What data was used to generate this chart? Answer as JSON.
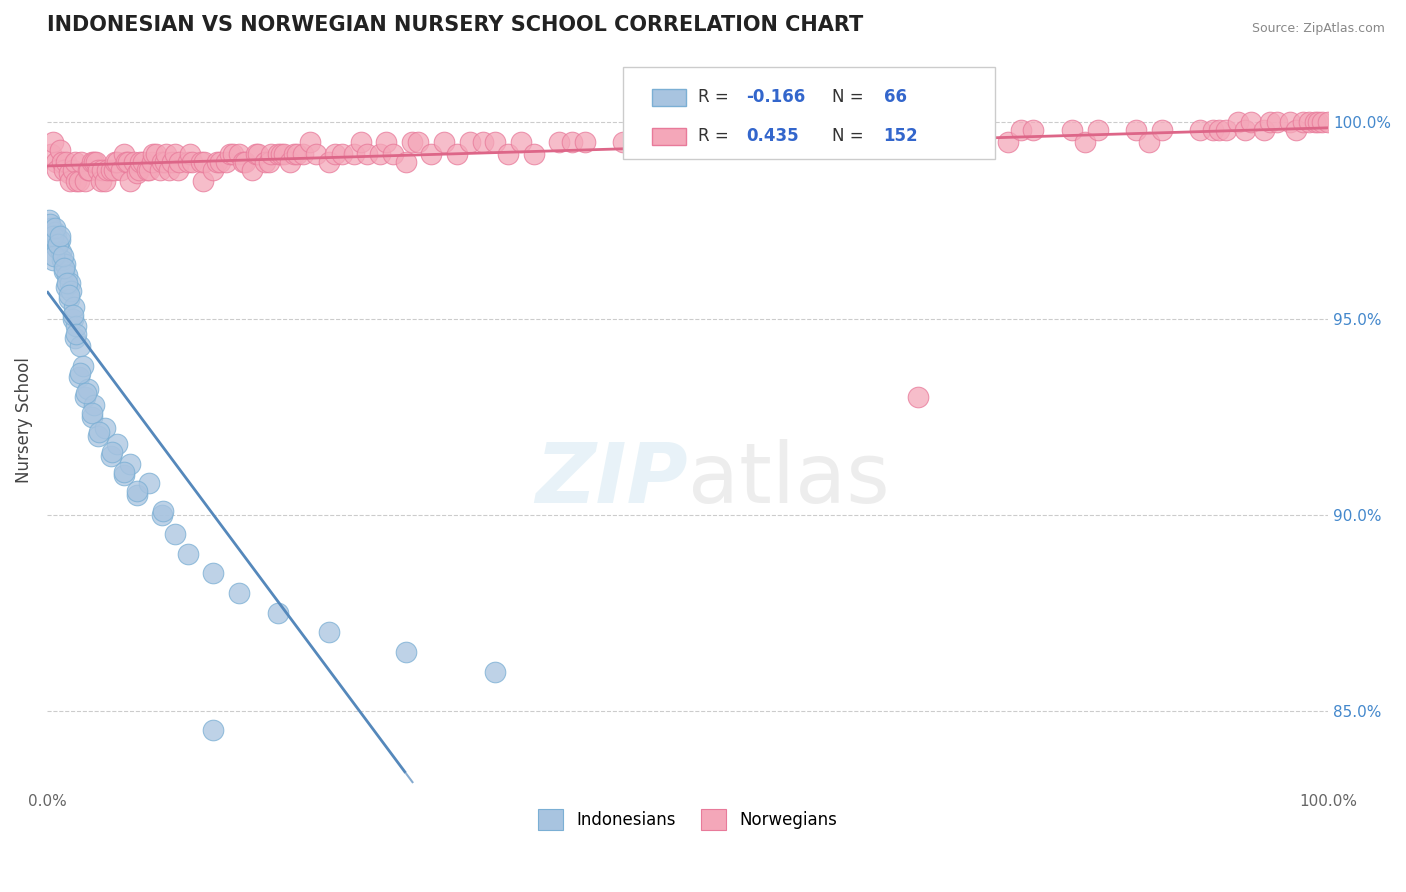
{
  "title": "INDONESIAN VS NORWEGIAN NURSERY SCHOOL CORRELATION CHART",
  "source": "Source: ZipAtlas.com",
  "ylabel": "Nursery School",
  "indonesian_color": "#a8c4e0",
  "norwegian_color": "#f4a7b9",
  "indonesian_edge": "#7bafd4",
  "norwegian_edge": "#e87a9a",
  "trend_blue": "#5588bb",
  "trend_pink": "#dd6688",
  "background": "#ffffff",
  "indonesian_x": [
    0.2,
    0.3,
    0.4,
    0.5,
    0.6,
    0.7,
    0.8,
    0.9,
    1.0,
    1.1,
    1.2,
    1.3,
    1.4,
    1.5,
    1.6,
    1.7,
    1.8,
    1.9,
    2.0,
    2.1,
    2.2,
    2.3,
    2.5,
    2.6,
    2.8,
    3.0,
    3.2,
    3.5,
    3.7,
    4.0,
    4.5,
    5.0,
    5.5,
    6.0,
    6.5,
    7.0,
    8.0,
    9.0,
    10.0,
    11.0,
    13.0,
    15.0,
    18.0,
    22.0,
    28.0,
    35.0,
    0.25,
    0.45,
    0.55,
    0.65,
    0.85,
    1.05,
    1.25,
    1.35,
    1.55,
    1.75,
    2.05,
    2.25,
    2.55,
    3.05,
    3.55,
    4.05,
    5.05,
    6.05,
    7.05,
    9.05
  ],
  "indonesian_y": [
    97.5,
    97.3,
    97.0,
    96.5,
    97.2,
    97.1,
    96.8,
    96.9,
    97.0,
    96.7,
    96.5,
    96.2,
    96.4,
    95.8,
    96.1,
    95.5,
    95.9,
    95.7,
    95.0,
    95.3,
    94.5,
    94.8,
    93.5,
    94.3,
    93.8,
    93.0,
    93.2,
    92.5,
    92.8,
    92.0,
    92.2,
    91.5,
    91.8,
    91.0,
    91.3,
    90.5,
    90.8,
    90.0,
    89.5,
    89.0,
    88.5,
    88.0,
    87.5,
    87.0,
    86.5,
    86.0,
    97.4,
    97.1,
    96.6,
    97.3,
    96.9,
    97.1,
    96.6,
    96.3,
    95.9,
    95.6,
    95.1,
    94.6,
    93.6,
    93.1,
    92.6,
    92.1,
    91.6,
    91.1,
    90.6,
    90.1
  ],
  "indonesian_outlier_x": [
    13.0
  ],
  "indonesian_outlier_y": [
    84.5
  ],
  "norwegian_x": [
    0.3,
    0.5,
    0.7,
    0.8,
    1.0,
    1.2,
    1.3,
    1.5,
    1.7,
    1.8,
    2.0,
    2.2,
    2.3,
    2.5,
    2.7,
    3.0,
    3.2,
    3.3,
    3.5,
    3.7,
    3.8,
    4.0,
    4.2,
    4.3,
    4.5,
    4.7,
    5.0,
    5.2,
    5.3,
    5.5,
    5.8,
    6.0,
    6.2,
    6.3,
    6.5,
    6.8,
    7.0,
    7.2,
    7.3,
    7.5,
    7.8,
    8.0,
    8.2,
    8.3,
    8.5,
    8.8,
    9.0,
    9.2,
    9.3,
    9.5,
    9.8,
    10.0,
    10.2,
    10.3,
    11.0,
    11.2,
    11.3,
    12.0,
    12.2,
    12.3,
    13.0,
    13.3,
    13.5,
    14.0,
    14.3,
    14.5,
    15.0,
    15.3,
    15.5,
    16.0,
    16.3,
    16.5,
    17.0,
    17.3,
    17.5,
    18.0,
    18.3,
    18.5,
    19.0,
    19.3,
    19.5,
    20.0,
    20.5,
    21.0,
    22.0,
    22.5,
    23.0,
    24.0,
    24.5,
    25.0,
    26.0,
    26.5,
    27.0,
    28.0,
    28.5,
    29.0,
    30.0,
    31.0,
    32.0,
    33.0,
    34.0,
    35.0,
    36.0,
    37.0,
    38.0,
    40.0,
    41.0,
    42.0,
    45.0,
    46.0,
    47.0,
    50.0,
    51.0,
    52.0,
    55.0,
    56.0,
    57.0,
    60.0,
    61.0,
    62.0,
    65.0,
    66.0,
    67.0,
    70.0,
    71.0,
    72.0,
    75.0,
    76.0,
    77.0,
    80.0,
    81.0,
    82.0,
    85.0,
    86.0,
    87.0,
    90.0,
    91.0,
    91.5,
    92.0,
    93.0,
    93.5,
    94.0,
    95.0,
    95.5,
    96.0,
    97.0,
    97.5,
    98.0,
    98.5,
    99.0,
    99.2,
    99.5,
    100.0
  ],
  "norwegian_y": [
    99.2,
    99.5,
    99.0,
    98.8,
    99.3,
    99.0,
    98.8,
    99.0,
    98.7,
    98.5,
    98.8,
    99.0,
    98.5,
    98.5,
    99.0,
    98.5,
    98.8,
    98.8,
    99.0,
    99.0,
    99.0,
    98.8,
    98.5,
    98.8,
    98.5,
    98.8,
    98.8,
    98.8,
    99.0,
    99.0,
    98.8,
    99.2,
    99.0,
    99.0,
    98.5,
    99.0,
    98.7,
    98.8,
    99.0,
    99.0,
    98.8,
    98.8,
    99.0,
    99.2,
    99.2,
    98.8,
    99.0,
    99.0,
    99.2,
    98.8,
    99.0,
    99.2,
    98.8,
    99.0,
    99.0,
    99.2,
    99.0,
    99.0,
    98.5,
    99.0,
    98.8,
    99.0,
    99.0,
    99.0,
    99.2,
    99.2,
    99.2,
    99.0,
    99.0,
    98.8,
    99.2,
    99.2,
    99.0,
    99.0,
    99.2,
    99.2,
    99.2,
    99.2,
    99.0,
    99.2,
    99.2,
    99.2,
    99.5,
    99.2,
    99.0,
    99.2,
    99.2,
    99.2,
    99.5,
    99.2,
    99.2,
    99.5,
    99.2,
    99.0,
    99.5,
    99.5,
    99.2,
    99.5,
    99.2,
    99.5,
    99.5,
    99.5,
    99.2,
    99.5,
    99.2,
    99.5,
    99.5,
    99.5,
    99.5,
    99.5,
    99.5,
    99.5,
    99.5,
    99.5,
    99.5,
    99.5,
    99.5,
    99.8,
    99.5,
    99.5,
    99.5,
    99.8,
    99.8,
    99.8,
    99.5,
    99.8,
    99.5,
    99.8,
    99.8,
    99.8,
    99.5,
    99.8,
    99.8,
    99.5,
    99.8,
    99.8,
    99.8,
    99.8,
    99.8,
    100.0,
    99.8,
    100.0,
    99.8,
    100.0,
    100.0,
    100.0,
    99.8,
    100.0,
    100.0,
    100.0,
    100.0,
    100.0,
    100.0
  ],
  "norwegian_outlier_x": [
    68.0
  ],
  "norwegian_outlier_y": [
    93.0
  ]
}
